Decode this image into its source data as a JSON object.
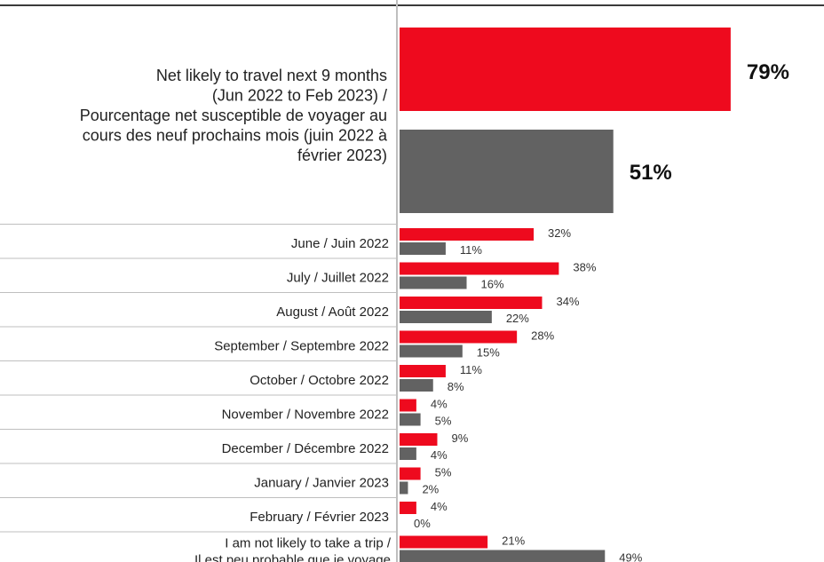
{
  "colors": {
    "series_1": "#ee0a1e",
    "series_2": "#626262",
    "separator": "#bfbfbf",
    "top_rule": "#3a3a3a"
  },
  "chart_data": {
    "type": "bar",
    "orientation": "horizontal",
    "title": "",
    "xlabel": "",
    "ylabel": "",
    "xlim": [
      0,
      100
    ],
    "legend": "none",
    "grid": false,
    "headline": {
      "label_lines": [
        "Net likely to travel next 9 months",
        "(Jun 2022 to Feb 2023) /",
        "Pourcentage net susceptible de voyager au",
        "cours des neuf prochains mois (juin 2022 à",
        "février 2023)"
      ],
      "values": [
        79,
        51
      ],
      "value_labels": [
        "79%",
        "51%"
      ]
    },
    "categories": [
      [
        "June / Juin 2022"
      ],
      [
        "July / Juillet 2022"
      ],
      [
        "August / Août 2022"
      ],
      [
        "September / Septembre 2022"
      ],
      [
        "October / Octobre 2022"
      ],
      [
        "November / Novembre 2022"
      ],
      [
        "December / Décembre 2022"
      ],
      [
        "January / Janvier 2023"
      ],
      [
        "February / Février  2023"
      ],
      [
        "I am not likely to take a trip /",
        "Il est peu probable que je voyage"
      ]
    ],
    "series": [
      {
        "values": [
          32,
          38,
          34,
          28,
          11,
          4,
          9,
          5,
          4,
          21
        ],
        "value_labels": [
          "32%",
          "38%",
          "34%",
          "28%",
          "11%",
          "4%",
          "9%",
          "5%",
          "4%",
          "21%"
        ]
      },
      {
        "values": [
          11,
          16,
          22,
          15,
          8,
          5,
          4,
          2,
          0,
          49
        ],
        "value_labels": [
          "11%",
          "16%",
          "22%",
          "15%",
          "8%",
          "5%",
          "4%",
          "2%",
          "0%",
          "49%"
        ]
      }
    ]
  }
}
